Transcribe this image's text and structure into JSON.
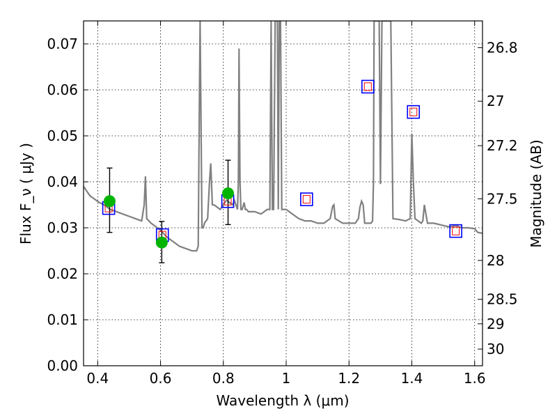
{
  "chart_data": {
    "type": "scatter",
    "xlabel": "Wavelength  λ (μm)",
    "ylabel": "Flux  F_ν  ( μJy )",
    "ylabel_right": "Magnitude (AB)",
    "xlim": [
      0.355,
      1.625
    ],
    "ylim": [
      0.0,
      0.075
    ],
    "grid": true,
    "x_ticks": [
      0.4,
      0.6,
      0.8,
      1.0,
      1.2,
      1.4,
      1.6
    ],
    "x_tick_labels": [
      "0.4",
      "0.6",
      "0.8",
      "1",
      "1.2",
      "1.4",
      "1.6"
    ],
    "y_ticks": [
      0.0,
      0.01,
      0.02,
      0.03,
      0.04,
      0.05,
      0.06,
      0.07
    ],
    "y_tick_labels": [
      "0.00",
      "0.01",
      "0.02",
      "0.03",
      "0.04",
      "0.05",
      "0.06",
      "0.07"
    ],
    "right_ticks": [
      26.8,
      27.0,
      27.2,
      27.5,
      28.0,
      28.5,
      29.0,
      30.0
    ],
    "right_tick_labels": [
      "26.8",
      "27",
      "27.2",
      "27.5",
      "28",
      "28.5",
      "29",
      "30"
    ],
    "colors": {
      "template": "#808080",
      "observed": "#00b400",
      "model_box": "#0000ff",
      "model_inner": "#ff0000",
      "errorbar": "#000000"
    },
    "template_spectrum": {
      "x": [
        0.355,
        0.365,
        0.375,
        0.385,
        0.395,
        0.405,
        0.42,
        0.44,
        0.46,
        0.48,
        0.5,
        0.52,
        0.54,
        0.548,
        0.552,
        0.556,
        0.57,
        0.6,
        0.62,
        0.64,
        0.66,
        0.68,
        0.7,
        0.715,
        0.72,
        0.724,
        0.726,
        0.728,
        0.732,
        0.736,
        0.74,
        0.75,
        0.756,
        0.76,
        0.765,
        0.77,
        0.78,
        0.79,
        0.8,
        0.81,
        0.82,
        0.83,
        0.835,
        0.84,
        0.845,
        0.848,
        0.85,
        0.853,
        0.856,
        0.86,
        0.866,
        0.87,
        0.874,
        0.88,
        0.9,
        0.92,
        0.94,
        0.948,
        0.952,
        0.956,
        0.96,
        0.965,
        0.97,
        0.972,
        0.975,
        0.978,
        0.982,
        0.986,
        0.99,
        1.0,
        1.02,
        1.04,
        1.06,
        1.08,
        1.1,
        1.12,
        1.14,
        1.148,
        1.152,
        1.156,
        1.18,
        1.2,
        1.22,
        1.23,
        1.235,
        1.24,
        1.245,
        1.25,
        1.26,
        1.27,
        1.275,
        1.278,
        1.28,
        1.284,
        1.29,
        1.294,
        1.296,
        1.3,
        1.305,
        1.31,
        1.32,
        1.33,
        1.333,
        1.34,
        1.36,
        1.38,
        1.395,
        1.4,
        1.405,
        1.41,
        1.42,
        1.43,
        1.435,
        1.44,
        1.45,
        1.47,
        1.5,
        1.52,
        1.54,
        1.56,
        1.58,
        1.6,
        1.61,
        1.625
      ],
      "y": [
        0.039,
        0.038,
        0.037,
        0.0365,
        0.036,
        0.0355,
        0.035,
        0.034,
        0.0335,
        0.033,
        0.0325,
        0.032,
        0.0315,
        0.035,
        0.0412,
        0.032,
        0.031,
        0.0295,
        0.028,
        0.027,
        0.026,
        0.0255,
        0.025,
        0.025,
        0.026,
        0.06,
        0.075,
        0.06,
        0.03,
        0.03,
        0.031,
        0.032,
        0.04,
        0.044,
        0.035,
        0.035,
        0.0345,
        0.034,
        0.035,
        0.036,
        0.0355,
        0.035,
        0.036,
        0.035,
        0.034,
        0.04,
        0.069,
        0.04,
        0.034,
        0.034,
        0.0355,
        0.034,
        0.034,
        0.0335,
        0.0335,
        0.033,
        0.034,
        0.034,
        0.075,
        0.034,
        0.034,
        0.075,
        0.075,
        0.075,
        0.034,
        0.075,
        0.075,
        0.034,
        0.034,
        0.034,
        0.033,
        0.032,
        0.0315,
        0.0315,
        0.031,
        0.031,
        0.032,
        0.0347,
        0.035,
        0.032,
        0.031,
        0.031,
        0.031,
        0.032,
        0.0345,
        0.0358,
        0.035,
        0.031,
        0.031,
        0.031,
        0.0315,
        0.04,
        0.075,
        0.075,
        0.075,
        0.075,
        0.075,
        0.0395,
        0.075,
        0.075,
        0.075,
        0.075,
        0.075,
        0.032,
        0.0318,
        0.0315,
        0.032,
        0.0505,
        0.04,
        0.032,
        0.0315,
        0.031,
        0.0315,
        0.035,
        0.031,
        0.031,
        0.0305,
        0.0302,
        0.0305,
        0.03,
        0.03,
        0.0298,
        0.029,
        0.0288
      ]
    },
    "observed_points": [
      {
        "x": 0.438,
        "y": 0.0358,
        "err_low": 0.0068,
        "err_high": 0.0072
      },
      {
        "x": 0.604,
        "y": 0.0268,
        "err_low": 0.0044,
        "err_high": 0.0046
      },
      {
        "x": 0.815,
        "y": 0.0375,
        "err_low": 0.0068,
        "err_high": 0.0072
      }
    ],
    "model_points": [
      {
        "x": 0.435,
        "y": 0.0343
      },
      {
        "x": 0.606,
        "y": 0.0284
      },
      {
        "x": 0.814,
        "y": 0.0358
      },
      {
        "x": 1.065,
        "y": 0.0362
      },
      {
        "x": 1.26,
        "y": 0.0607
      },
      {
        "x": 1.405,
        "y": 0.0552
      },
      {
        "x": 1.54,
        "y": 0.0293
      }
    ]
  }
}
